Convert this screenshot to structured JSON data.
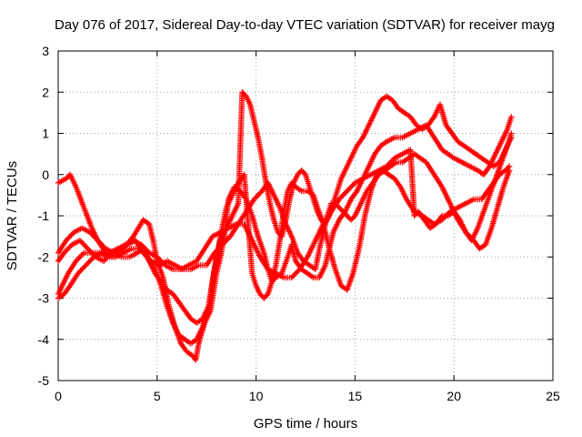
{
  "chart_data": {
    "type": "scatter",
    "title": "Day 076 of 2017, Sidereal Day-to-day VTEC variation (SDTVAR) for receiver mayg",
    "xlabel": "GPS time / hours",
    "ylabel": "SDTVAR / TECUs",
    "xlim": [
      0,
      25
    ],
    "ylim": [
      -5,
      3
    ],
    "xticks": [
      "0",
      "5",
      "10",
      "15",
      "20",
      "25"
    ],
    "yticks": [
      "-5",
      "-4",
      "-3",
      "-2",
      "-1",
      "0",
      "1",
      "2",
      "3"
    ],
    "grid": true,
    "marker": "+",
    "color": "#ff0000",
    "series": [
      {
        "x": [
          0.0,
          0.4,
          0.6,
          0.9,
          1.3,
          1.7,
          2.0,
          2.4,
          2.8,
          3.3,
          3.8,
          4.3,
          4.6,
          4.8,
          5.0,
          5.3,
          5.6,
          5.9,
          6.2,
          6.5,
          6.8,
          6.95,
          7.1,
          7.4,
          7.7,
          8.0,
          8.2,
          8.4,
          8.6,
          8.9,
          9.2,
          9.5,
          9.8,
          10.1,
          10.4,
          10.6,
          10.8,
          11.0,
          11.3,
          11.6,
          11.8,
          12.0,
          12.3,
          12.6,
          12.9,
          13.2,
          13.5,
          13.7,
          13.9,
          14.2,
          14.5,
          14.8,
          15.1,
          15.4,
          15.7,
          16.0,
          16.3,
          16.6,
          17.0,
          17.4,
          17.8,
          18.2,
          18.6,
          19.0,
          19.4,
          19.7,
          20.0,
          20.4,
          20.8,
          21.2,
          21.5,
          21.8,
          22.1,
          22.4,
          22.7,
          22.9
        ],
        "y": [
          -0.2,
          -0.1,
          0.0,
          -0.3,
          -0.8,
          -1.3,
          -1.6,
          -1.9,
          -2.0,
          -1.8,
          -1.5,
          -1.1,
          -1.2,
          -1.6,
          -2.1,
          -2.5,
          -3.2,
          -3.7,
          -4.1,
          -4.3,
          -4.4,
          -4.5,
          -4.1,
          -3.6,
          -3.3,
          -2.4,
          -2.0,
          -1.5,
          -0.6,
          -0.3,
          -0.4,
          -0.6,
          -1.0,
          -1.5,
          -1.9,
          -2.3,
          -2.6,
          -2.5,
          -2.4,
          -2.0,
          -1.7,
          -2.1,
          -2.3,
          -2.4,
          -2.5,
          -2.5,
          -2.2,
          -1.8,
          -1.4,
          -1.1,
          -0.9,
          -0.6,
          -0.4,
          -0.1,
          0.2,
          0.5,
          0.7,
          0.8,
          0.9,
          0.9,
          1.0,
          1.1,
          1.2,
          0.9,
          0.6,
          0.5,
          0.4,
          0.3,
          0.2,
          0.1,
          0.0,
          0.2,
          0.5,
          0.8,
          1.1,
          1.4
        ]
      },
      {
        "x": [
          0.0,
          0.2,
          0.5,
          0.9,
          1.3,
          1.7,
          2.1,
          2.5,
          2.9,
          3.3,
          3.7,
          4.1,
          4.5,
          4.9,
          5.2,
          5.5,
          5.8,
          6.1,
          6.4,
          6.7,
          7.0,
          7.3,
          7.6,
          7.9,
          8.2,
          8.5,
          8.8,
          9.1,
          9.4,
          9.6,
          9.8,
          10.0,
          10.2,
          10.4,
          10.6,
          10.8,
          11.0,
          11.2,
          11.4,
          11.6,
          11.8,
          12.0,
          12.3,
          12.6,
          12.9,
          13.1,
          13.4,
          13.7,
          14.0,
          14.3,
          14.6,
          14.9,
          15.2,
          15.5,
          15.8,
          16.1,
          16.4,
          16.7,
          17.0,
          17.3,
          17.6,
          18.0,
          18.4,
          18.7,
          19.0,
          19.4,
          19.8,
          20.2,
          20.6,
          21.0,
          21.4,
          21.7,
          22.0,
          22.3,
          22.6,
          22.8
        ],
        "y": [
          -2.9,
          -2.7,
          -2.4,
          -2.1,
          -1.9,
          -1.9,
          -1.9,
          -2.0,
          -2.0,
          -1.9,
          -1.8,
          -1.8,
          -2.0,
          -2.3,
          -2.7,
          -3.2,
          -3.6,
          -3.9,
          -4.0,
          -4.1,
          -4.0,
          -3.7,
          -3.2,
          -2.3,
          -1.5,
          -0.8,
          -0.5,
          -0.2,
          0.0,
          -1.2,
          -2.4,
          -2.7,
          -2.9,
          -3.0,
          -2.9,
          -2.6,
          -2.2,
          -1.6,
          -0.9,
          -0.4,
          -0.2,
          -0.3,
          -0.4,
          -0.4,
          -0.5,
          -0.8,
          -1.2,
          -1.8,
          -2.3,
          -2.7,
          -2.8,
          -2.4,
          -1.8,
          -1.0,
          -0.4,
          0.0,
          0.1,
          0.0,
          -0.1,
          -0.3,
          -0.6,
          -0.9,
          -1.0,
          -1.1,
          -1.2,
          -1.1,
          -0.9,
          -0.8,
          -0.7,
          -0.6,
          -0.6,
          -0.4,
          -0.2,
          0.0,
          0.1,
          0.2
        ]
      },
      {
        "x": [
          0.0,
          0.3,
          0.7,
          1.1,
          1.5,
          1.9,
          2.3,
          2.7,
          3.1,
          3.5,
          3.9,
          4.3,
          4.7,
          5.1,
          5.5,
          5.9,
          6.3,
          6.7,
          7.1,
          7.5,
          7.9,
          8.3,
          8.7,
          9.1,
          9.5,
          9.9,
          10.3,
          10.6,
          10.9,
          11.2,
          11.5,
          11.8,
          12.1,
          12.4,
          12.7,
          13.0,
          13.2,
          13.4,
          13.6,
          13.8,
          14.0,
          14.2,
          14.4,
          14.6,
          14.8,
          15.0,
          15.3,
          15.6,
          15.9,
          16.2,
          16.5,
          16.8,
          17.1,
          17.4,
          17.7,
          18.0,
          18.3,
          18.6,
          19.0,
          19.4,
          19.8,
          20.2,
          20.6,
          21.0,
          21.3,
          21.6,
          21.9,
          22.2,
          22.5,
          22.8
        ],
        "y": [
          -2.1,
          -1.9,
          -1.7,
          -1.6,
          -1.8,
          -2.0,
          -2.1,
          -1.9,
          -1.8,
          -1.7,
          -1.6,
          -1.9,
          -2.1,
          -2.2,
          -2.1,
          -2.2,
          -2.3,
          -2.3,
          -2.2,
          -2.2,
          -1.9,
          -1.7,
          -1.5,
          -1.2,
          -0.9,
          -0.6,
          -0.4,
          -0.2,
          -0.5,
          -0.8,
          -1.2,
          -1.5,
          -1.9,
          -2.1,
          -2.2,
          -2.3,
          -1.8,
          -1.4,
          -1.0,
          -0.7,
          -0.7,
          -0.8,
          -0.9,
          -1.0,
          -1.1,
          -1.0,
          -0.7,
          -0.4,
          -0.2,
          0.0,
          0.1,
          0.2,
          0.3,
          0.3,
          0.4,
          0.5,
          0.4,
          0.3,
          0.0,
          -0.3,
          -0.7,
          -1.1,
          -1.4,
          -1.6,
          -1.8,
          -1.7,
          -1.3,
          -0.8,
          -0.3,
          0.1
        ]
      },
      {
        "x": [
          0.0,
          0.4,
          0.8,
          1.2,
          1.6,
          2.0,
          2.4,
          2.8,
          3.2,
          3.6,
          4.0,
          4.3,
          4.6,
          4.9,
          5.2,
          5.5,
          5.8,
          6.1,
          6.4,
          6.7,
          7.0,
          7.3,
          7.6,
          7.8,
          8.0,
          8.2,
          8.5,
          8.8,
          9.1,
          9.3,
          9.5,
          9.7,
          9.9,
          10.1,
          10.3,
          10.5,
          10.7,
          10.9,
          11.1,
          11.3,
          11.5,
          11.7,
          11.9,
          12.1,
          12.3,
          12.5,
          12.7,
          12.9,
          13.1,
          13.3,
          13.5,
          13.7,
          13.9,
          14.1,
          14.3,
          14.5,
          14.7,
          14.9,
          15.1,
          15.4,
          15.7,
          16.0,
          16.3,
          16.6,
          16.9,
          17.2,
          17.5,
          17.8,
          18.1,
          18.4,
          18.7,
          19.0,
          19.3,
          19.6,
          19.9,
          20.2,
          20.5,
          20.8,
          21.1,
          21.4,
          21.7,
          22.0,
          22.3,
          22.6,
          22.9
        ],
        "y": [
          -1.9,
          -1.6,
          -1.4,
          -1.3,
          -1.4,
          -1.6,
          -1.8,
          -1.9,
          -2.0,
          -2.0,
          -1.9,
          -1.8,
          -2.1,
          -2.4,
          -2.6,
          -2.8,
          -2.9,
          -3.1,
          -3.3,
          -3.5,
          -3.6,
          -3.5,
          -3.2,
          -2.6,
          -2.0,
          -1.6,
          -1.3,
          -1.0,
          -0.7,
          2.0,
          1.9,
          1.7,
          1.3,
          0.9,
          0.4,
          -0.2,
          -0.7,
          -1.1,
          -1.4,
          -1.5,
          -1.1,
          -0.6,
          -0.2,
          0.0,
          0.1,
          0.0,
          -0.3,
          -0.6,
          -0.9,
          -1.1,
          -1.2,
          -1.0,
          -0.7,
          -0.4,
          -0.1,
          0.1,
          0.3,
          0.5,
          0.7,
          0.9,
          1.2,
          1.5,
          1.8,
          1.9,
          1.8,
          1.6,
          1.5,
          1.4,
          1.2,
          1.1,
          1.2,
          1.4,
          1.7,
          1.2,
          1.0,
          0.8,
          0.7,
          0.6,
          0.5,
          0.4,
          0.3,
          0.2,
          0.3,
          0.6,
          0.9
        ]
      },
      {
        "x": [
          0.0,
          0.3,
          0.6,
          1.0,
          1.4,
          1.8,
          2.2,
          2.6,
          3.0,
          3.4,
          3.8,
          4.2,
          4.6,
          5.0,
          5.4,
          5.8,
          6.2,
          6.6,
          7.0,
          7.4,
          7.8,
          8.2,
          8.6,
          9.0,
          9.4,
          9.8,
          10.2,
          10.6,
          11.0,
          11.4,
          11.8,
          12.2,
          12.6,
          13.0,
          13.4,
          13.8,
          14.2,
          14.6,
          15.0,
          15.4,
          15.8,
          16.2,
          16.6,
          17.0,
          17.4,
          17.8,
          18.0,
          18.2,
          18.5,
          18.8,
          19.1,
          19.4,
          19.7,
          20.0,
          20.3,
          20.6,
          20.9,
          21.2,
          21.5,
          21.8,
          22.1,
          22.4,
          22.7,
          22.9
        ],
        "y": [
          -3.0,
          -2.9,
          -2.7,
          -2.4,
          -2.2,
          -2.0,
          -1.9,
          -1.9,
          -1.8,
          -1.7,
          -1.6,
          -1.7,
          -1.9,
          -2.0,
          -2.2,
          -2.3,
          -2.3,
          -2.2,
          -2.1,
          -1.8,
          -1.5,
          -1.4,
          -1.3,
          -1.2,
          -1.2,
          -1.6,
          -2.0,
          -2.3,
          -2.4,
          -2.5,
          -2.5,
          -2.3,
          -2.0,
          -1.6,
          -1.2,
          -0.9,
          -0.6,
          -0.4,
          -0.2,
          -0.1,
          0.0,
          0.1,
          0.2,
          0.4,
          0.5,
          0.6,
          -1.0,
          -0.9,
          -1.1,
          -1.3,
          -1.2,
          -1.0,
          -1.0,
          -0.9,
          -1.1,
          -1.4,
          -1.6,
          -1.3,
          -0.9,
          -0.5,
          -0.1,
          0.3,
          0.7,
          1.0
        ]
      }
    ]
  }
}
